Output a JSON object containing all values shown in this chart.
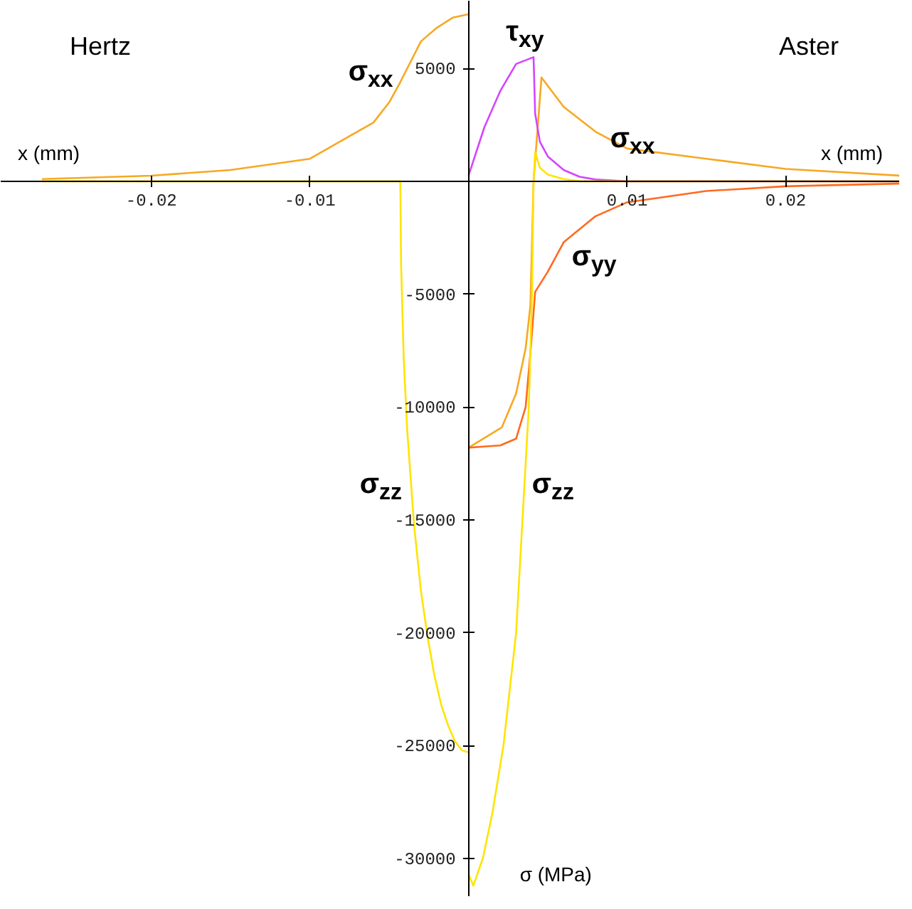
{
  "chart_data": {
    "type": "line",
    "xlabel": "x (mm)",
    "ylabel": "σ (MPa)",
    "xlim": [
      -0.0295,
      0.0272
    ],
    "ylim": [
      -31700,
      8000
    ],
    "xticks": [
      -0.02,
      -0.01,
      0.01,
      0.02
    ],
    "yticks": [
      5000,
      -5000,
      -10000,
      -15000,
      -20000,
      -25000,
      -30000
    ],
    "grid": false,
    "marker": "none",
    "line_style": "solid",
    "annotations": [
      "Hertz",
      "Aster",
      "x (mm)",
      "σ$_{xx}$",
      "τ$_{xy}$",
      "σ$_{xx}$",
      "σ$_{yy}$",
      "σ$_{zz}$",
      "σ$_{zz}$"
    ],
    "series": [
      {
        "color": "#f7a823",
        "x": [
          -0.0269,
          -0.02,
          -0.015,
          -0.01,
          -0.006,
          -0.005,
          -0.0043,
          -0.003,
          -0.002,
          -0.001,
          0
        ],
        "values": [
          100,
          250,
          500,
          1000,
          2600,
          3500,
          4400,
          6200,
          6800,
          7250,
          7400
        ]
      },
      {
        "color": "#ffe400",
        "x": [
          -0.0269,
          -0.0043,
          -0.004257,
          -0.004085,
          -0.00387,
          -0.00344,
          -0.00301,
          -0.00258,
          -0.00215,
          -0.00172,
          -0.00129,
          -0.00086,
          -0.00043,
          0
        ],
        "values": [
          0,
          0,
          -3570,
          -7900,
          -11000,
          -15200,
          -18100,
          -20200,
          -21900,
          -23200,
          -24100,
          -24800,
          -25200,
          -25300
        ]
      },
      {
        "color": "#f7a823",
        "x": [
          0,
          0.0021,
          0.003,
          0.0036,
          0.0039,
          0.0041,
          0.0046,
          0.006,
          0.008,
          0.01,
          0.015,
          0.02,
          0.0272
        ],
        "values": [
          -11800,
          -10900,
          -9400,
          -7400,
          -5500,
          0,
          4600,
          3300,
          2200,
          1450,
          1000,
          550,
          250
        ]
      },
      {
        "color": "#ff6a1f",
        "x": [
          0,
          0.001,
          0.002,
          0.003,
          0.0036,
          0.0039,
          0.0042,
          0.005,
          0.006,
          0.008,
          0.01,
          0.015,
          0.02,
          0.0272
        ],
        "values": [
          -11800,
          -11750,
          -11700,
          -11400,
          -10000,
          -7600,
          -4900,
          -4000,
          -2700,
          -1550,
          -930,
          -430,
          -220,
          -100
        ]
      },
      {
        "color": "#d445ff",
        "x": [
          0,
          0.001,
          0.002,
          0.003,
          0.0041,
          0.0042,
          0.0045,
          0.005,
          0.006,
          0.007,
          0.008,
          0.01,
          0.0272
        ],
        "values": [
          250,
          2400,
          4000,
          5200,
          5500,
          3000,
          1750,
          1100,
          500,
          200,
          80,
          0,
          0
        ]
      },
      {
        "color": "#ffe400",
        "x": [
          0,
          0.0003,
          0.0009,
          0.0015,
          0.0022,
          0.003,
          0.0034,
          0.0038,
          0.004,
          0.0041,
          0.0042,
          0.0045,
          0.005,
          0.006,
          0.007,
          0.0272
        ],
        "values": [
          -30700,
          -31200,
          -30000,
          -28000,
          -25000,
          -20000,
          -15000,
          -10000,
          -5000,
          0,
          1300,
          600,
          300,
          100,
          0,
          0
        ]
      }
    ]
  }
}
